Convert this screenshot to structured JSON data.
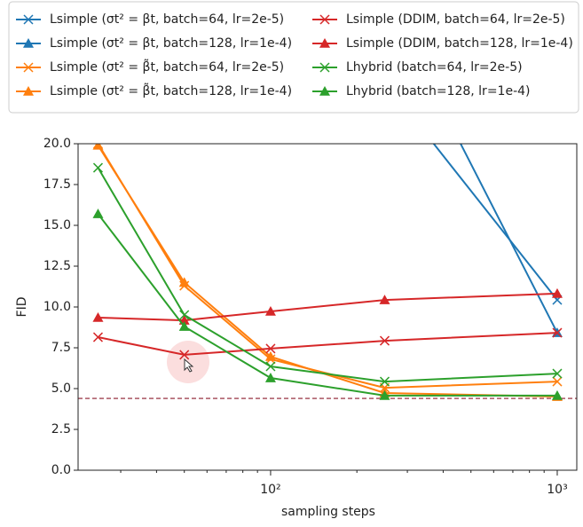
{
  "chart_data": {
    "type": "line",
    "xlabel": "sampling steps",
    "ylabel": "FID",
    "x": [
      25,
      50,
      100,
      250,
      1000
    ],
    "xscale": "log",
    "xlim": [
      21.3,
      1170
    ],
    "xticks": [
      {
        "value": 100,
        "label": "10²"
      },
      {
        "value": 1000,
        "label": "10³"
      }
    ],
    "ylim": [
      0,
      20
    ],
    "yticks": [
      {
        "value": 0,
        "label": "0.0"
      },
      {
        "value": 2.5,
        "label": "2.5"
      },
      {
        "value": 5,
        "label": "5.0"
      },
      {
        "value": 7.5,
        "label": "7.5"
      },
      {
        "value": 10,
        "label": "10.0"
      },
      {
        "value": 12.5,
        "label": "12.5"
      },
      {
        "value": 15,
        "label": "15.0"
      },
      {
        "value": 17.5,
        "label": "17.5"
      },
      {
        "value": 20,
        "label": "20.0"
      }
    ],
    "reference_line": {
      "value": 4.4,
      "color": "#8b1a2b"
    },
    "legend": "top",
    "series": [
      {
        "name": "Lsimple (σt² = βt, batch=64, lr=2e-5)",
        "color": "#1f77b4",
        "marker": "x",
        "values": [
          null,
          null,
          null,
          23.8,
          10.43
        ]
      },
      {
        "name": "Lsimple (σt² = βt, batch=128, lr=1e-4)",
        "color": "#1f77b4",
        "marker": "^",
        "values": [
          null,
          null,
          null,
          29.1,
          8.42
        ]
      },
      {
        "name": "Lsimple (σt² = β̃t, batch=64, lr=2e-5)",
        "color": "#ff7f0e",
        "marker": "x",
        "values": [
          20.0,
          11.3,
          6.8,
          5.05,
          5.43
        ]
      },
      {
        "name": "Lsimple (σt² = β̃t, batch=128, lr=1e-4)",
        "color": "#ff7f0e",
        "marker": "^",
        "values": [
          19.9,
          11.5,
          6.96,
          4.73,
          4.51
        ]
      },
      {
        "name": "Lsimple (DDIM, batch=64, lr=2e-5)",
        "color": "#d62728",
        "marker": "x",
        "values": [
          8.15,
          7.07,
          7.45,
          7.93,
          8.42
        ]
      },
      {
        "name": "Lsimple (DDIM, batch=128, lr=1e-4)",
        "color": "#d62728",
        "marker": "^",
        "values": [
          9.35,
          9.18,
          9.73,
          10.43,
          10.82
        ]
      },
      {
        "name": "Lhybrid (batch=64, lr=2e-5)",
        "color": "#2ca02c",
        "marker": "x",
        "values": [
          18.53,
          9.51,
          6.36,
          5.43,
          5.92
        ]
      },
      {
        "name": "Lhybrid (batch=128, lr=1e-4)",
        "color": "#2ca02c",
        "marker": "^",
        "values": [
          15.7,
          8.8,
          5.65,
          4.57,
          4.57
        ]
      }
    ]
  }
}
